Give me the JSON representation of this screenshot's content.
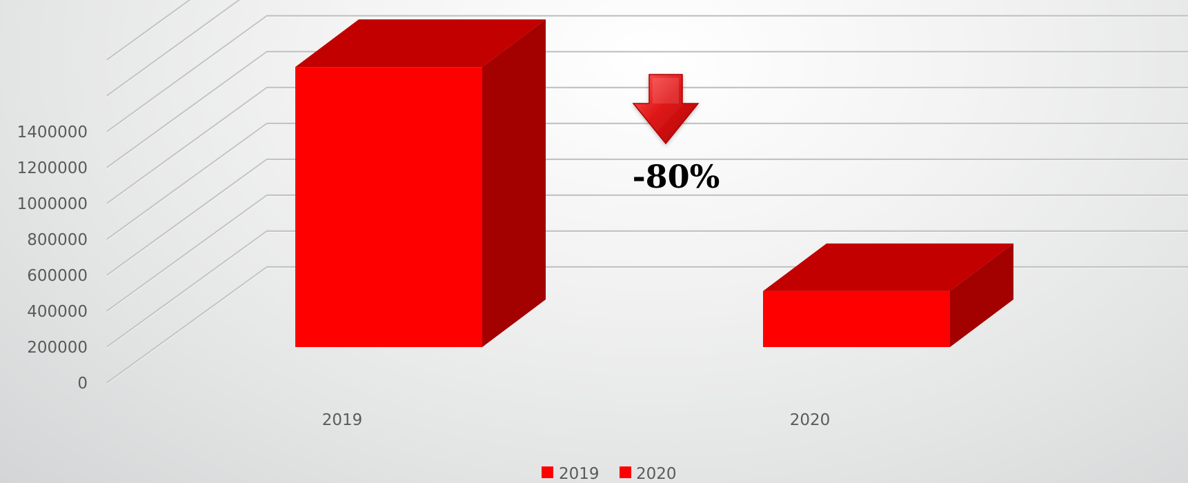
{
  "chart_data": {
    "type": "bar",
    "style": "3d-column",
    "title": "",
    "xlabel": "",
    "ylabel": "",
    "categories": [
      "2019",
      "2020"
    ],
    "series": [
      {
        "name": "2019",
        "values": [
          1400000,
          null
        ]
      },
      {
        "name": "2020",
        "values": [
          null,
          280000
        ]
      }
    ],
    "ylim": [
      0,
      1400000
    ],
    "yticks": [
      "0",
      "200000",
      "400000",
      "600000",
      "800000",
      "1000000",
      "1200000",
      "1400000"
    ],
    "grid": true,
    "legend_position": "bottom",
    "annotation": {
      "text": "-80%",
      "icon": "down-arrow-icon"
    }
  },
  "colors": {
    "bar_front": "#ff0000",
    "bar_top": "#c20000",
    "bar_side": "#a30000",
    "grid": "#c4c4c4",
    "text": "#5a5a5a"
  }
}
